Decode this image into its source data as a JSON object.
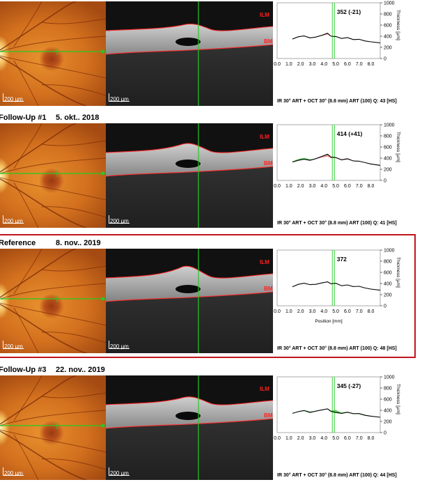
{
  "visits": [
    {
      "name": "",
      "date": "",
      "thickness_label": "352 (-21)",
      "thickness_value": 352,
      "thickness_delta": -21,
      "footer": "IR 30° ART + OCT 30° (8.8 mm) ART (100) Q: 43 [HS]",
      "show_position_label": false
    },
    {
      "name": "Follow-Up #1",
      "date": "5. okt.. 2018",
      "thickness_label": "414 (+41)",
      "thickness_value": 414,
      "thickness_delta": 41,
      "footer": "IR 30° ART + OCT 30° (8.8 mm) ART (100) Q: 41 [HS]",
      "show_position_label": false
    },
    {
      "name": "Reference",
      "date": "8. nov.. 2019",
      "thickness_label": "372",
      "thickness_value": 372,
      "thickness_delta": null,
      "footer": "IR 30° ART + OCT 30° (8.8 mm) ART (100) Q: 48 [HS]",
      "show_position_label": true
    },
    {
      "name": "Follow-Up #3",
      "date": "22. nov.. 2019",
      "thickness_label": "345 (-27)",
      "thickness_value": 345,
      "thickness_delta": -27,
      "footer": "IR 30° ART + OCT 30° (8.8 mm) ART (100) Q: 44 [HS]",
      "show_position_label": false
    }
  ],
  "scale_label": "200 µm",
  "layer_labels": {
    "top": "ILM",
    "bottom": "BM"
  },
  "chart_data": {
    "type": "line",
    "ylabel": "Thickness [µm]",
    "xlabel": "Position [mm]",
    "xticks": [
      "0.0",
      "1.0",
      "2.0",
      "3.0",
      "4.0",
      "5.0",
      "6.0",
      "7.0",
      "8.0"
    ],
    "yticks": [
      "0",
      "200",
      "400",
      "600",
      "800",
      "1000"
    ],
    "xlim": [
      0,
      8.8
    ],
    "ylim": [
      0,
      1000
    ],
    "marker_x": 4.8,
    "reference_profile": {
      "x": [
        1.3,
        1.8,
        2.3,
        2.8,
        3.3,
        3.8,
        4.3,
        4.6,
        5.0,
        5.5,
        6.0,
        6.5,
        7.0,
        7.5,
        8.0,
        8.8
      ],
      "y": [
        340,
        385,
        405,
        380,
        385,
        410,
        430,
        395,
        405,
        360,
        375,
        345,
        350,
        320,
        300,
        280
      ]
    },
    "series": [
      {
        "x": [
          1.3,
          1.8,
          2.3,
          2.8,
          3.3,
          3.8,
          4.3,
          4.6,
          5.0,
          5.5,
          6.0,
          6.5,
          7.0,
          7.5,
          8.0,
          8.8
        ],
        "y": [
          350,
          390,
          405,
          370,
          385,
          415,
          455,
          400,
          395,
          360,
          375,
          340,
          345,
          315,
          300,
          280
        ]
      },
      {
        "x": [
          1.3,
          1.8,
          2.3,
          2.8,
          3.3,
          3.8,
          4.3,
          4.6,
          5.0,
          5.5,
          6.0,
          6.5,
          7.0,
          7.5,
          8.0,
          8.8
        ],
        "y": [
          330,
          360,
          380,
          360,
          390,
          430,
          470,
          420,
          410,
          370,
          390,
          350,
          345,
          320,
          295,
          270
        ]
      },
      {
        "x": [
          1.3,
          1.8,
          2.3,
          2.8,
          3.3,
          3.8,
          4.3,
          4.6,
          5.0,
          5.5,
          6.0,
          6.5,
          7.0,
          7.5,
          8.0,
          8.8
        ],
        "y": [
          340,
          385,
          405,
          380,
          385,
          410,
          430,
          395,
          405,
          360,
          375,
          345,
          350,
          320,
          300,
          280
        ]
      },
      {
        "x": [
          1.3,
          1.8,
          2.3,
          2.8,
          3.3,
          3.8,
          4.3,
          4.6,
          5.0,
          5.5,
          6.0,
          6.5,
          7.0,
          7.5,
          8.0,
          8.8
        ],
        "y": [
          345,
          375,
          395,
          360,
          385,
          405,
          425,
          380,
          360,
          345,
          365,
          340,
          340,
          310,
          295,
          275
        ]
      }
    ]
  },
  "colors": {
    "reference_box": "#c0141b",
    "marker_line": "#22cc22",
    "layer_line": "#ff2a2a",
    "layer_text": "#ff2020",
    "thickness_line": "#000000",
    "diff_increase": "#e88080",
    "diff_decrease": "#4fbf4f"
  }
}
